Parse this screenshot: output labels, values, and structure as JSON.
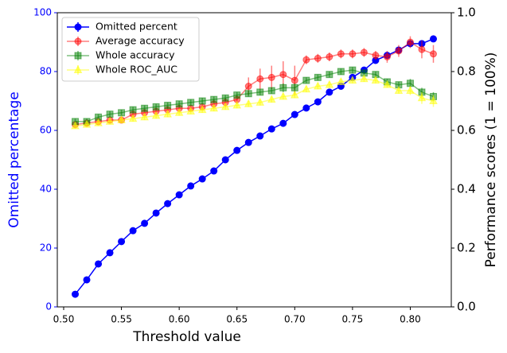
{
  "chart_data": {
    "type": "line",
    "xlabel": "Threshold value",
    "ylabel": "Omitted percentage",
    "y2label": "Performance scores (1 = 100%)",
    "x": [
      0.51,
      0.52,
      0.53,
      0.54,
      0.55,
      0.56,
      0.57,
      0.58,
      0.59,
      0.6,
      0.61,
      0.62,
      0.63,
      0.64,
      0.65,
      0.66,
      0.67,
      0.68,
      0.69,
      0.7,
      0.71,
      0.72,
      0.73,
      0.74,
      0.75,
      0.76,
      0.77,
      0.78,
      0.79,
      0.8,
      0.81,
      0.82
    ],
    "xlim": [
      0.4945,
      0.8355
    ],
    "xticks": [
      {
        "value": 0.5,
        "label": "0.50"
      },
      0.55,
      {
        "value": 0.6,
        "label": "0.60"
      },
      0.65,
      {
        "value": 0.7,
        "label": "0.70"
      },
      0.75,
      {
        "value": 0.8,
        "label": "0.80"
      }
    ],
    "ylim": [
      0,
      100
    ],
    "yticks": [
      0,
      20,
      40,
      60,
      80,
      100
    ],
    "y2lim": [
      0,
      1
    ],
    "y2ticks": [
      {
        "value": 0,
        "label": "0.0"
      },
      0.2,
      0.4,
      0.6,
      0.8,
      {
        "value": 1,
        "label": "1.0"
      }
    ],
    "legend": "upper left",
    "series": [
      {
        "name": "Omitted percent",
        "color": "#0000ff",
        "marker": "o",
        "alpha": 1,
        "values": [
          4.3,
          9.2,
          14.6,
          18.4,
          22.2,
          25.9,
          28.4,
          31.9,
          35.1,
          38.1,
          41.1,
          43.5,
          46.2,
          50,
          53.2,
          55.9,
          58.1,
          60.5,
          62.4,
          65.4,
          67.6,
          69.7,
          73,
          75,
          78,
          80.5,
          83.8,
          85.5,
          87.3,
          89.5,
          89.5,
          91.1
        ],
        "errors": [
          0.3,
          0.3,
          0.3,
          0.3,
          0.3,
          0.3,
          0.3,
          0.3,
          0.3,
          0.3,
          0.3,
          0.3,
          0.3,
          0.3,
          0.3,
          0.3,
          0.3,
          0.3,
          0.3,
          0.3,
          0.3,
          0.3,
          0.3,
          0.3,
          0.3,
          0.3,
          0.3,
          0.3,
          0.3,
          0.3,
          0.3,
          0.3
        ]
      },
      {
        "name": "Average accuracy",
        "color": "#ff0000",
        "marker": "o",
        "alpha": 0.5,
        "axis": "y2",
        "values": [
          0.62,
          0.625,
          0.63,
          0.635,
          0.635,
          0.655,
          0.66,
          0.665,
          0.67,
          0.675,
          0.675,
          0.68,
          0.69,
          0.695,
          0.705,
          0.75,
          0.775,
          0.78,
          0.79,
          0.77,
          0.84,
          0.845,
          0.85,
          0.86,
          0.86,
          0.865,
          0.855,
          0.85,
          0.87,
          0.9,
          0.875,
          0.86
        ],
        "errors": [
          0.01,
          0.01,
          0.01,
          0.01,
          0.01,
          0.01,
          0.01,
          0.01,
          0.01,
          0.01,
          0.01,
          0.01,
          0.015,
          0.015,
          0.015,
          0.03,
          0.035,
          0.04,
          0.045,
          0.05,
          0.015,
          0.015,
          0.015,
          0.015,
          0.015,
          0.015,
          0.015,
          0.02,
          0.02,
          0.02,
          0.03,
          0.03
        ]
      },
      {
        "name": "Whole accuracy",
        "color": "#008000",
        "marker": "s",
        "alpha": 0.5,
        "axis": "y2",
        "values": [
          0.63,
          0.63,
          0.645,
          0.655,
          0.66,
          0.67,
          0.675,
          0.68,
          0.685,
          0.69,
          0.695,
          0.7,
          0.705,
          0.71,
          0.72,
          0.725,
          0.73,
          0.735,
          0.745,
          0.745,
          0.77,
          0.78,
          0.79,
          0.8,
          0.805,
          0.795,
          0.79,
          0.765,
          0.755,
          0.76,
          0.73,
          0.715
        ],
        "errors": [
          0.01,
          0.01,
          0.01,
          0.01,
          0.01,
          0.01,
          0.01,
          0.01,
          0.01,
          0.01,
          0.01,
          0.01,
          0.01,
          0.01,
          0.01,
          0.01,
          0.01,
          0.01,
          0.015,
          0.015,
          0.01,
          0.01,
          0.01,
          0.01,
          0.01,
          0.01,
          0.01,
          0.01,
          0.01,
          0.015,
          0.015,
          0.015
        ]
      },
      {
        "name": "Whole ROC_AUC",
        "color": "#ffff00",
        "marker": "^",
        "alpha": 0.5,
        "axis": "y2",
        "values": [
          0.615,
          0.62,
          0.625,
          0.63,
          0.635,
          0.64,
          0.645,
          0.65,
          0.655,
          0.66,
          0.665,
          0.67,
          0.675,
          0.68,
          0.685,
          0.69,
          0.695,
          0.705,
          0.715,
          0.72,
          0.74,
          0.75,
          0.755,
          0.765,
          0.77,
          0.775,
          0.77,
          0.755,
          0.735,
          0.735,
          0.71,
          0.7
        ],
        "errors": [
          0.01,
          0.01,
          0.01,
          0.01,
          0.01,
          0.01,
          0.01,
          0.01,
          0.01,
          0.01,
          0.01,
          0.01,
          0.01,
          0.01,
          0.01,
          0.01,
          0.01,
          0.01,
          0.01,
          0.01,
          0.01,
          0.01,
          0.01,
          0.01,
          0.01,
          0.01,
          0.01,
          0.01,
          0.01,
          0.015,
          0.02,
          0.02
        ]
      }
    ]
  }
}
